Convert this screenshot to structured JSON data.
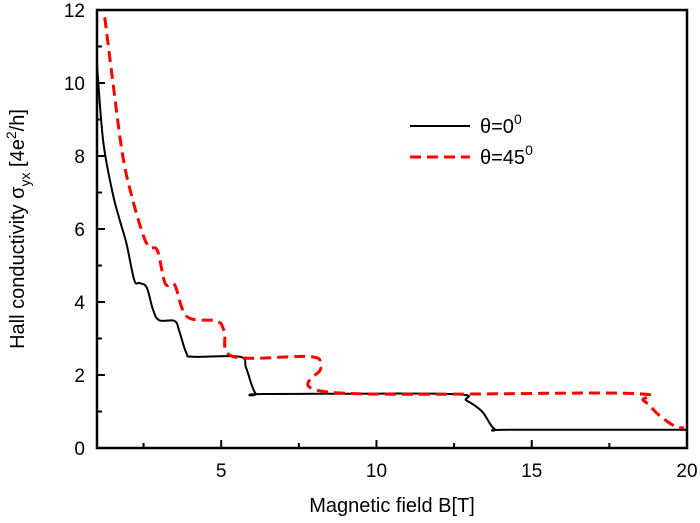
{
  "chart_data": {
    "type": "line",
    "title": "",
    "xlabel": "Magnetic field B[T]",
    "ylabel_parts": {
      "main": "Hall conductivity σ",
      "sub": "yx",
      "unit_open": " [4e",
      "unit_sup": "2",
      "unit_close": "/h]"
    },
    "xlim": [
      1,
      20
    ],
    "ylim": [
      0,
      12
    ],
    "xticks": [
      5,
      10,
      15,
      20
    ],
    "xticks_minor": [
      2.5,
      7.5,
      12.5,
      17.5
    ],
    "yticks": [
      0,
      2,
      4,
      6,
      8,
      10,
      12
    ],
    "yticks_minor": [
      1,
      3,
      5,
      7,
      9,
      11
    ],
    "grid": false,
    "legend_position": "upper-right-center",
    "series": [
      {
        "name": "θ=0",
        "name_sup": "0",
        "color": "#000000",
        "style": "solid",
        "points": [
          [
            1.0,
            10.5
          ],
          [
            1.2,
            8.4
          ],
          [
            1.5,
            7.0
          ],
          [
            1.73,
            6.25
          ],
          [
            1.95,
            5.6
          ],
          [
            2.2,
            4.6
          ],
          [
            2.37,
            4.52
          ],
          [
            2.6,
            4.4
          ],
          [
            2.8,
            3.8
          ],
          [
            3.0,
            3.5
          ],
          [
            3.5,
            3.48
          ],
          [
            3.65,
            3.2
          ],
          [
            3.88,
            2.6
          ],
          [
            4.1,
            2.5
          ],
          [
            5.6,
            2.5
          ],
          [
            5.8,
            2.2
          ],
          [
            6.1,
            1.5
          ],
          [
            6.45,
            1.48
          ],
          [
            12.37,
            1.48
          ],
          [
            12.9,
            1.3
          ],
          [
            13.4,
            1.0
          ],
          [
            13.8,
            0.52
          ],
          [
            14.3,
            0.5
          ],
          [
            20.0,
            0.5
          ]
        ]
      },
      {
        "name": "θ=45",
        "name_sup": "0",
        "color": "#ff0000",
        "style": "dashed",
        "points": [
          [
            1.25,
            11.8
          ],
          [
            1.5,
            10.1
          ],
          [
            1.83,
            8.0
          ],
          [
            2.15,
            6.8
          ],
          [
            2.5,
            5.8
          ],
          [
            2.7,
            5.5
          ],
          [
            2.95,
            5.4
          ],
          [
            3.2,
            4.5
          ],
          [
            3.5,
            4.47
          ],
          [
            3.9,
            3.6
          ],
          [
            4.85,
            3.48
          ],
          [
            5.1,
            3.2
          ],
          [
            5.4,
            2.5
          ],
          [
            7.9,
            2.5
          ],
          [
            8.2,
            2.2
          ],
          [
            8.6,
            1.52
          ],
          [
            17.97,
            1.5
          ],
          [
            18.6,
            1.3
          ],
          [
            19.1,
            0.9
          ],
          [
            19.6,
            0.6
          ],
          [
            19.9,
            0.55
          ]
        ]
      }
    ]
  }
}
